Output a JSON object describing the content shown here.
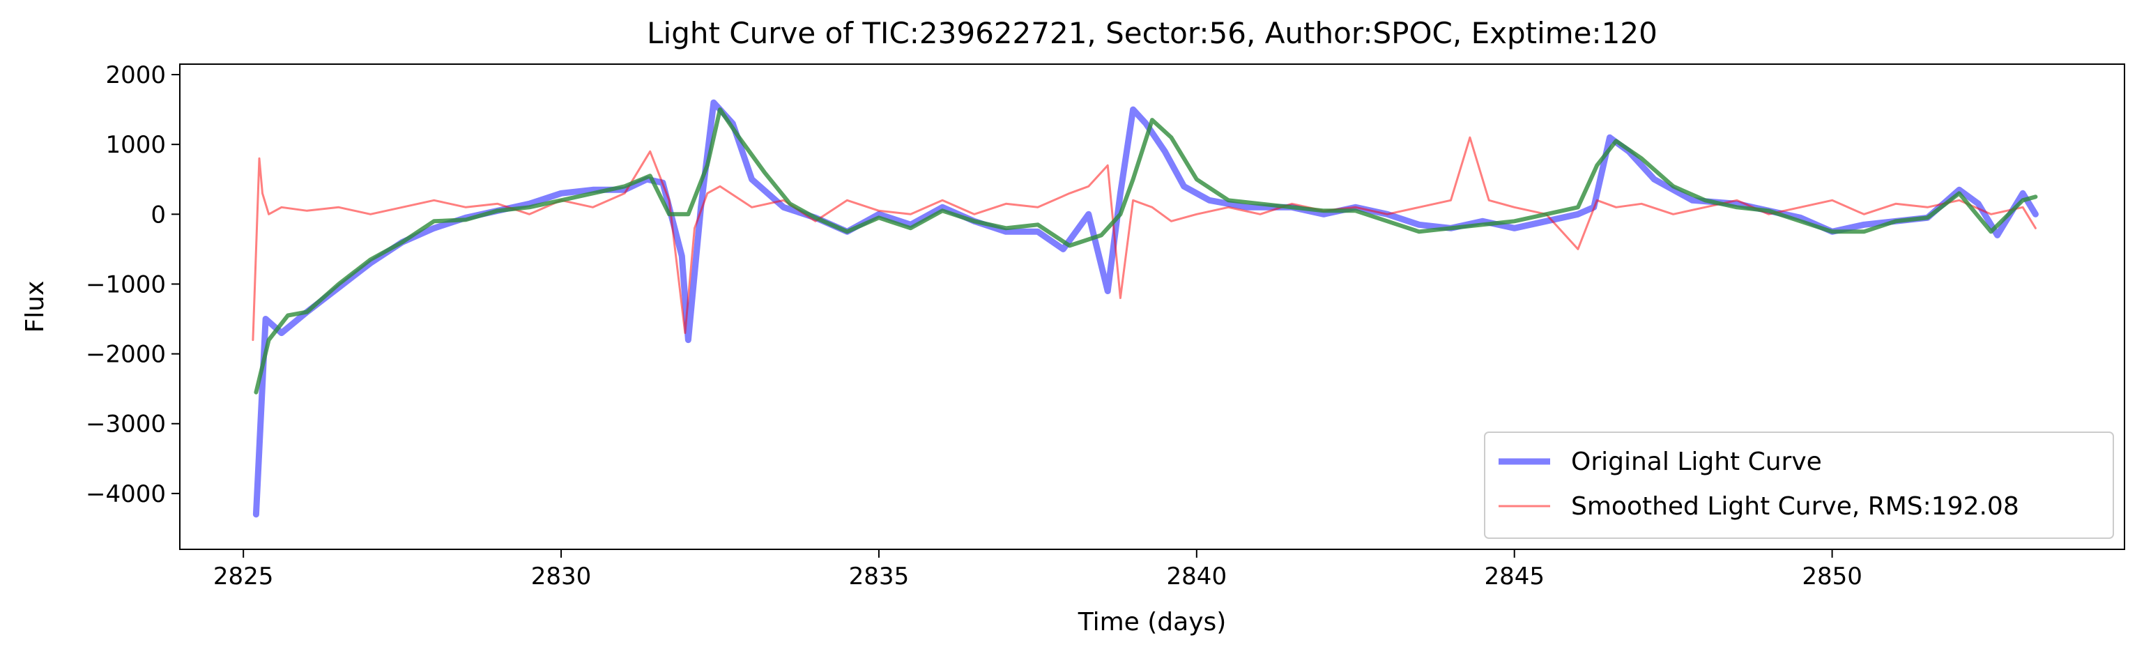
{
  "chart_data": {
    "type": "line",
    "title": "Light Curve of TIC:239622721, Sector:56, Author:SPOC, Exptime:120",
    "xlabel": "Time (days)",
    "ylabel": "Flux",
    "xlim": [
      2824.0,
      2854.6
    ],
    "ylim": [
      -4800,
      2150
    ],
    "xticks": [
      2825,
      2830,
      2835,
      2840,
      2845,
      2850
    ],
    "yticks": [
      -4000,
      -3000,
      -2000,
      -1000,
      0,
      1000,
      2000
    ],
    "xtick_labels": [
      "2825",
      "2830",
      "2835",
      "2840",
      "2845",
      "2850"
    ],
    "ytick_labels": [
      "−4000",
      "−3000",
      "−2000",
      "−1000",
      "0",
      "1000",
      "2000"
    ],
    "grid": false,
    "legend_position": "lower-right",
    "series": [
      {
        "name": "Original Light Curve",
        "color": "#0000ff",
        "opacity": 0.5,
        "x": [
          2825.2,
          2825.35,
          2825.6,
          2826.0,
          2826.5,
          2827.0,
          2827.5,
          2828.0,
          2828.5,
          2829.0,
          2829.5,
          2830.0,
          2830.5,
          2831.0,
          2831.35,
          2831.6,
          2831.9,
          2832.0,
          2832.2,
          2832.4,
          2832.7,
          2833.0,
          2833.5,
          2834.0,
          2834.5,
          2835.0,
          2835.5,
          2836.0,
          2836.5,
          2837.0,
          2837.5,
          2837.9,
          2838.3,
          2838.6,
          2838.8,
          2839.0,
          2839.2,
          2839.5,
          2839.8,
          2840.2,
          2840.8,
          2841.5,
          2842.0,
          2842.5,
          2843.0,
          2843.5,
          2844.0,
          2844.5,
          2845.0,
          2845.5,
          2846.0,
          2846.25,
          2846.5,
          2846.8,
          2847.2,
          2847.8,
          2848.5,
          2849.0,
          2849.5,
          2850.0,
          2850.5,
          2851.0,
          2851.5,
          2852.0,
          2852.3,
          2852.6,
          2853.0,
          2853.2
        ],
        "y": [
          -4300,
          -1500,
          -1700,
          -1400,
          -1050,
          -700,
          -400,
          -200,
          -50,
          50,
          150,
          300,
          350,
          350,
          500,
          450,
          -600,
          -1800,
          100,
          1600,
          1300,
          500,
          100,
          -50,
          -250,
          0,
          -150,
          100,
          -100,
          -250,
          -250,
          -500,
          0,
          -1100,
          300,
          1500,
          1300,
          900,
          400,
          200,
          100,
          100,
          0,
          100,
          0,
          -150,
          -200,
          -100,
          -200,
          -100,
          0,
          100,
          1100,
          900,
          500,
          200,
          150,
          50,
          -50,
          -250,
          -150,
          -100,
          -50,
          350,
          150,
          -300,
          300,
          0
        ]
      },
      {
        "name": "Smoothed Light Curve, RMS:192.08",
        "color": "#ff0000",
        "opacity": 0.5,
        "x": [
          2825.15,
          2825.25,
          2825.3,
          2825.4,
          2825.6,
          2826.0,
          2826.5,
          2827.0,
          2827.5,
          2828.0,
          2828.5,
          2829.0,
          2829.5,
          2830.0,
          2830.5,
          2831.0,
          2831.4,
          2831.7,
          2831.95,
          2832.1,
          2832.3,
          2832.5,
          2833.0,
          2833.5,
          2834.0,
          2834.5,
          2835.0,
          2835.5,
          2836.0,
          2836.5,
          2837.0,
          2837.5,
          2838.0,
          2838.3,
          2838.6,
          2838.8,
          2839.0,
          2839.3,
          2839.6,
          2840.0,
          2840.5,
          2841.0,
          2841.5,
          2842.0,
          2842.5,
          2843.0,
          2843.5,
          2844.0,
          2844.3,
          2844.6,
          2845.0,
          2845.5,
          2846.0,
          2846.3,
          2846.6,
          2847.0,
          2847.5,
          2848.0,
          2848.5,
          2849.0,
          2849.5,
          2850.0,
          2850.5,
          2851.0,
          2851.5,
          2852.0,
          2852.5,
          2853.0,
          2853.2
        ],
        "y": [
          -1800,
          800,
          300,
          0,
          100,
          50,
          100,
          0,
          100,
          200,
          100,
          150,
          0,
          200,
          100,
          300,
          900,
          200,
          -1700,
          -200,
          300,
          400,
          100,
          200,
          -100,
          200,
          50,
          0,
          200,
          0,
          150,
          100,
          300,
          400,
          700,
          -1200,
          200,
          100,
          -100,
          0,
          100,
          0,
          150,
          50,
          100,
          0,
          100,
          200,
          1100,
          200,
          100,
          0,
          -500,
          200,
          100,
          150,
          0,
          100,
          200,
          0,
          100,
          200,
          0,
          150,
          100,
          200,
          0,
          100,
          -200
        ]
      },
      {
        "name": "",
        "color": "#2e8b3a",
        "opacity": 0.8,
        "x": [
          2825.2,
          2825.4,
          2825.7,
          2826.0,
          2826.5,
          2827.0,
          2827.5,
          2828.0,
          2828.5,
          2829.0,
          2829.5,
          2830.0,
          2830.5,
          2831.0,
          2831.4,
          2831.7,
          2832.0,
          2832.3,
          2832.5,
          2832.8,
          2833.2,
          2833.6,
          2834.0,
          2834.5,
          2835.0,
          2835.5,
          2836.0,
          2836.5,
          2837.0,
          2837.5,
          2838.0,
          2838.5,
          2838.8,
          2839.0,
          2839.3,
          2839.6,
          2840.0,
          2840.5,
          2841.0,
          2841.5,
          2842.0,
          2842.5,
          2843.0,
          2843.5,
          2844.0,
          2844.5,
          2845.0,
          2845.5,
          2846.0,
          2846.3,
          2846.6,
          2847.0,
          2847.5,
          2848.0,
          2848.5,
          2849.0,
          2849.5,
          2850.0,
          2850.5,
          2851.0,
          2851.5,
          2852.0,
          2852.5,
          2853.0,
          2853.2
        ],
        "y": [
          -2550,
          -1800,
          -1450,
          -1400,
          -1000,
          -650,
          -400,
          -100,
          -80,
          50,
          100,
          200,
          300,
          400,
          550,
          0,
          0,
          700,
          1500,
          1100,
          600,
          150,
          -50,
          -250,
          -50,
          -200,
          50,
          -100,
          -200,
          -150,
          -450,
          -300,
          0,
          500,
          1350,
          1100,
          500,
          200,
          150,
          100,
          50,
          50,
          -100,
          -250,
          -200,
          -150,
          -100,
          0,
          100,
          700,
          1050,
          800,
          400,
          200,
          100,
          50,
          -100,
          -250,
          -250,
          -100,
          -50,
          300,
          -250,
          200,
          250
        ]
      }
    ]
  }
}
